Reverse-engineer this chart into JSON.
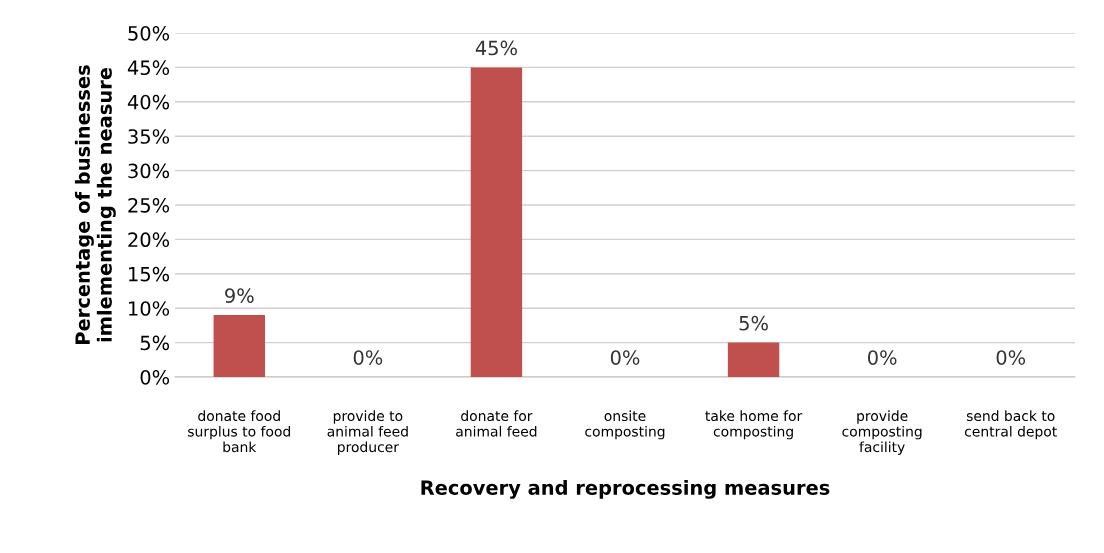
{
  "chart_data": {
    "type": "bar",
    "xlabel": "Recovery and reprocessing measures",
    "ylabel": "Percentage of businesses\nimlementing the neasure",
    "categories": [
      "donate food\nsurplus to food\nbank",
      "provide to\nanimal feed\nproducer",
      "donate for\nanimal feed",
      "onsite\ncomposting",
      "take home for\ncomposting",
      "provide\ncomposting\nfacility",
      "send back to\ncentral depot"
    ],
    "values": [
      9,
      0,
      45,
      0,
      5,
      0,
      0
    ],
    "value_labels": [
      "9%",
      "0%",
      "45%",
      "0%",
      "5%",
      "0%",
      "0%"
    ],
    "color": "#c0504d",
    "ylim": [
      0,
      50
    ],
    "yticks": [
      {
        "value": 0,
        "label": "0%"
      },
      {
        "value": 5,
        "label": "5%"
      },
      {
        "value": 10,
        "label": "10%"
      },
      {
        "value": 15,
        "label": "15%"
      },
      {
        "value": 20,
        "label": "20%"
      },
      {
        "value": 25,
        "label": "25%"
      },
      {
        "value": 30,
        "label": "30%"
      },
      {
        "value": 35,
        "label": "35%"
      },
      {
        "value": 40,
        "label": "40%"
      },
      {
        "value": 45,
        "label": "45%"
      },
      {
        "value": 50,
        "label": "50%"
      }
    ],
    "grid": "y",
    "legend": false
  }
}
